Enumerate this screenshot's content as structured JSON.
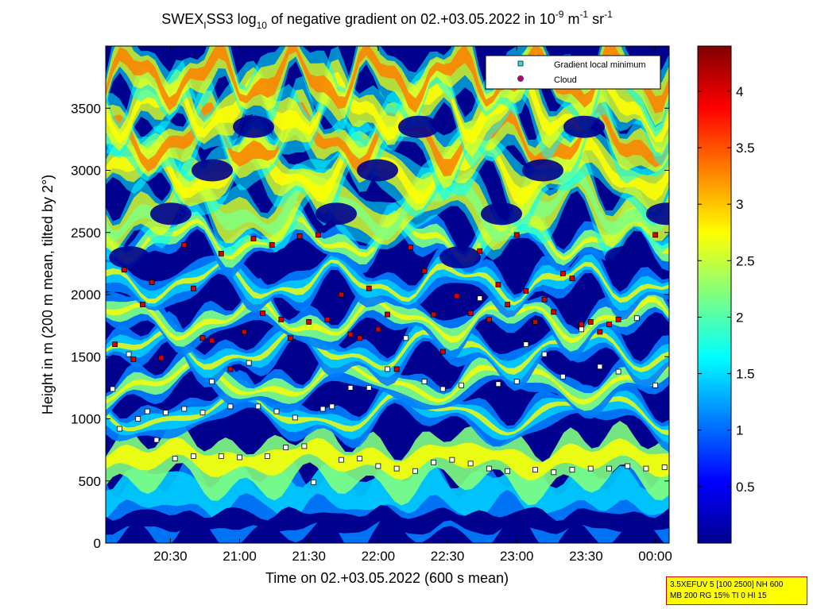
{
  "title": {
    "prefix": "SWEX",
    "sub1": "I",
    "mid": "SS3 log",
    "sub2": "10",
    "rest": " of negative gradient on 02.+03.05.2022 in 10",
    "sup1": "-9",
    "unit1": " m",
    "sup2": "-1",
    "unit2": " sr",
    "sup3": "-1"
  },
  "legend": {
    "items": [
      {
        "label": "Gradient local minimum",
        "color": "#33dddd"
      },
      {
        "label": "Cloud",
        "color": "#dd0000"
      }
    ]
  },
  "param_box": {
    "line1": "3.5XEFUV 5 [100 2500] NH 600",
    "line2": "MB 200 RG 15% TI 0 HI 15"
  },
  "colors": {
    "background_low": "#00008f",
    "colormap": [
      "#00008f",
      "#0000ff",
      "#0080ff",
      "#00ffff",
      "#80ff80",
      "#ffff00",
      "#ff8000",
      "#ff0000",
      "#800000"
    ]
  },
  "chart_data": {
    "type": "heatmap",
    "xlabel": "Time on 02.+03.05.2022 (600 s mean)",
    "ylabel": "Height in m (200 m mean, tilted by 2°)",
    "x_ticks": [
      "20:30",
      "21:00",
      "21:30",
      "22:00",
      "22:30",
      "23:00",
      "23:30",
      "00:00"
    ],
    "x_tick_minutes": [
      1230,
      1260,
      1290,
      1320,
      1350,
      1380,
      1410,
      1440
    ],
    "xlim_minutes": [
      1202,
      1446
    ],
    "y_ticks": [
      0,
      500,
      1000,
      1500,
      2000,
      2500,
      3000,
      3500
    ],
    "ylim": [
      0,
      4000
    ],
    "colorbar": {
      "ticks": [
        0.5,
        1,
        1.5,
        2,
        2.5,
        3,
        3.5,
        4
      ],
      "range": [
        0,
        4.4
      ]
    },
    "layers": [
      {
        "name": "Gradient local minimum",
        "points": [
          [
            1205,
            1240
          ],
          [
            1208,
            920
          ],
          [
            1212,
            1520
          ],
          [
            1216,
            1000
          ],
          [
            1220,
            1060
          ],
          [
            1224,
            830
          ],
          [
            1228,
            1050
          ],
          [
            1232,
            680
          ],
          [
            1236,
            1080
          ],
          [
            1240,
            700
          ],
          [
            1244,
            1050
          ],
          [
            1248,
            1300
          ],
          [
            1252,
            700
          ],
          [
            1256,
            1100
          ],
          [
            1260,
            690
          ],
          [
            1264,
            1450
          ],
          [
            1268,
            1100
          ],
          [
            1272,
            700
          ],
          [
            1276,
            1060
          ],
          [
            1280,
            770
          ],
          [
            1284,
            1010
          ],
          [
            1288,
            780
          ],
          [
            1292,
            490
          ],
          [
            1296,
            1080
          ],
          [
            1300,
            1100
          ],
          [
            1304,
            670
          ],
          [
            1308,
            1250
          ],
          [
            1312,
            680
          ],
          [
            1316,
            1250
          ],
          [
            1320,
            620
          ],
          [
            1324,
            1400
          ],
          [
            1328,
            600
          ],
          [
            1332,
            1650
          ],
          [
            1336,
            580
          ],
          [
            1340,
            1300
          ],
          [
            1344,
            650
          ],
          [
            1348,
            1240
          ],
          [
            1352,
            670
          ],
          [
            1356,
            1270
          ],
          [
            1360,
            640
          ],
          [
            1364,
            1970
          ],
          [
            1368,
            600
          ],
          [
            1372,
            1280
          ],
          [
            1376,
            580
          ],
          [
            1380,
            1300
          ],
          [
            1384,
            1600
          ],
          [
            1388,
            590
          ],
          [
            1392,
            1520
          ],
          [
            1396,
            570
          ],
          [
            1400,
            1340
          ],
          [
            1404,
            590
          ],
          [
            1408,
            1720
          ],
          [
            1412,
            600
          ],
          [
            1416,
            1420
          ],
          [
            1420,
            600
          ],
          [
            1424,
            1380
          ],
          [
            1428,
            620
          ],
          [
            1432,
            1810
          ],
          [
            1436,
            600
          ],
          [
            1440,
            1270
          ],
          [
            1444,
            610
          ]
        ]
      },
      {
        "name": "Cloud",
        "points": [
          [
            1206,
            1600
          ],
          [
            1210,
            2200
          ],
          [
            1214,
            1480
          ],
          [
            1218,
            1920
          ],
          [
            1222,
            2100
          ],
          [
            1226,
            1490
          ],
          [
            1236,
            2400
          ],
          [
            1240,
            2050
          ],
          [
            1244,
            1650
          ],
          [
            1248,
            1630
          ],
          [
            1252,
            2330
          ],
          [
            1256,
            1400
          ],
          [
            1262,
            1700
          ],
          [
            1266,
            2450
          ],
          [
            1270,
            1850
          ],
          [
            1274,
            2400
          ],
          [
            1278,
            1800
          ],
          [
            1282,
            1650
          ],
          [
            1286,
            2470
          ],
          [
            1290,
            1780
          ],
          [
            1294,
            2480
          ],
          [
            1298,
            1800
          ],
          [
            1304,
            2000
          ],
          [
            1308,
            1680
          ],
          [
            1312,
            1650
          ],
          [
            1316,
            2050
          ],
          [
            1320,
            1720
          ],
          [
            1324,
            1840
          ],
          [
            1328,
            1400
          ],
          [
            1334,
            2380
          ],
          [
            1340,
            2190
          ],
          [
            1344,
            1840
          ],
          [
            1348,
            1540
          ],
          [
            1354,
            1990
          ],
          [
            1360,
            1850
          ],
          [
            1364,
            2350
          ],
          [
            1368,
            1800
          ],
          [
            1372,
            2080
          ],
          [
            1376,
            1920
          ],
          [
            1380,
            2480
          ],
          [
            1384,
            2030
          ],
          [
            1388,
            1780
          ],
          [
            1392,
            1960
          ],
          [
            1396,
            1860
          ],
          [
            1400,
            2170
          ],
          [
            1404,
            2130
          ],
          [
            1408,
            1760
          ],
          [
            1412,
            1780
          ],
          [
            1416,
            1700
          ],
          [
            1420,
            1760
          ],
          [
            1424,
            1800
          ],
          [
            1440,
            2480
          ]
        ]
      }
    ]
  }
}
